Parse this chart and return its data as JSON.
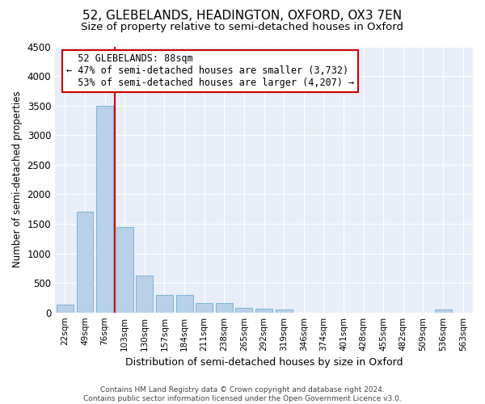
{
  "title": "52, GLEBELANDS, HEADINGTON, OXFORD, OX3 7EN",
  "subtitle": "Size of property relative to semi-detached houses in Oxford",
  "xlabel": "Distribution of semi-detached houses by size in Oxford",
  "ylabel": "Number of semi-detached properties",
  "property_label": "52 GLEBELANDS: 88sqm",
  "pct_smaller": 47,
  "pct_larger": 53,
  "n_smaller": 3732,
  "n_larger": 4207,
  "bin_labels": [
    "22sqm",
    "49sqm",
    "76sqm",
    "103sqm",
    "130sqm",
    "157sqm",
    "184sqm",
    "211sqm",
    "238sqm",
    "265sqm",
    "292sqm",
    "319sqm",
    "346sqm",
    "374sqm",
    "401sqm",
    "428sqm",
    "455sqm",
    "482sqm",
    "509sqm",
    "536sqm",
    "563sqm"
  ],
  "bin_values": [
    130,
    1700,
    3500,
    1440,
    620,
    300,
    290,
    165,
    160,
    80,
    60,
    55,
    0,
    0,
    0,
    0,
    0,
    0,
    0,
    55,
    0
  ],
  "bar_color": "#B8D0E8",
  "bar_edge_color": "#6BAED6",
  "red_line_bin": 2,
  "ylim": [
    0,
    4500
  ],
  "background_color": "#E8EEF8",
  "footer_text": "Contains HM Land Registry data © Crown copyright and database right 2024.\nContains public sector information licensed under the Open Government Licence v3.0.",
  "grid_color": "#FFFFFF",
  "title_fontsize": 11,
  "subtitle_fontsize": 9.5,
  "annotation_fontsize": 8.5
}
